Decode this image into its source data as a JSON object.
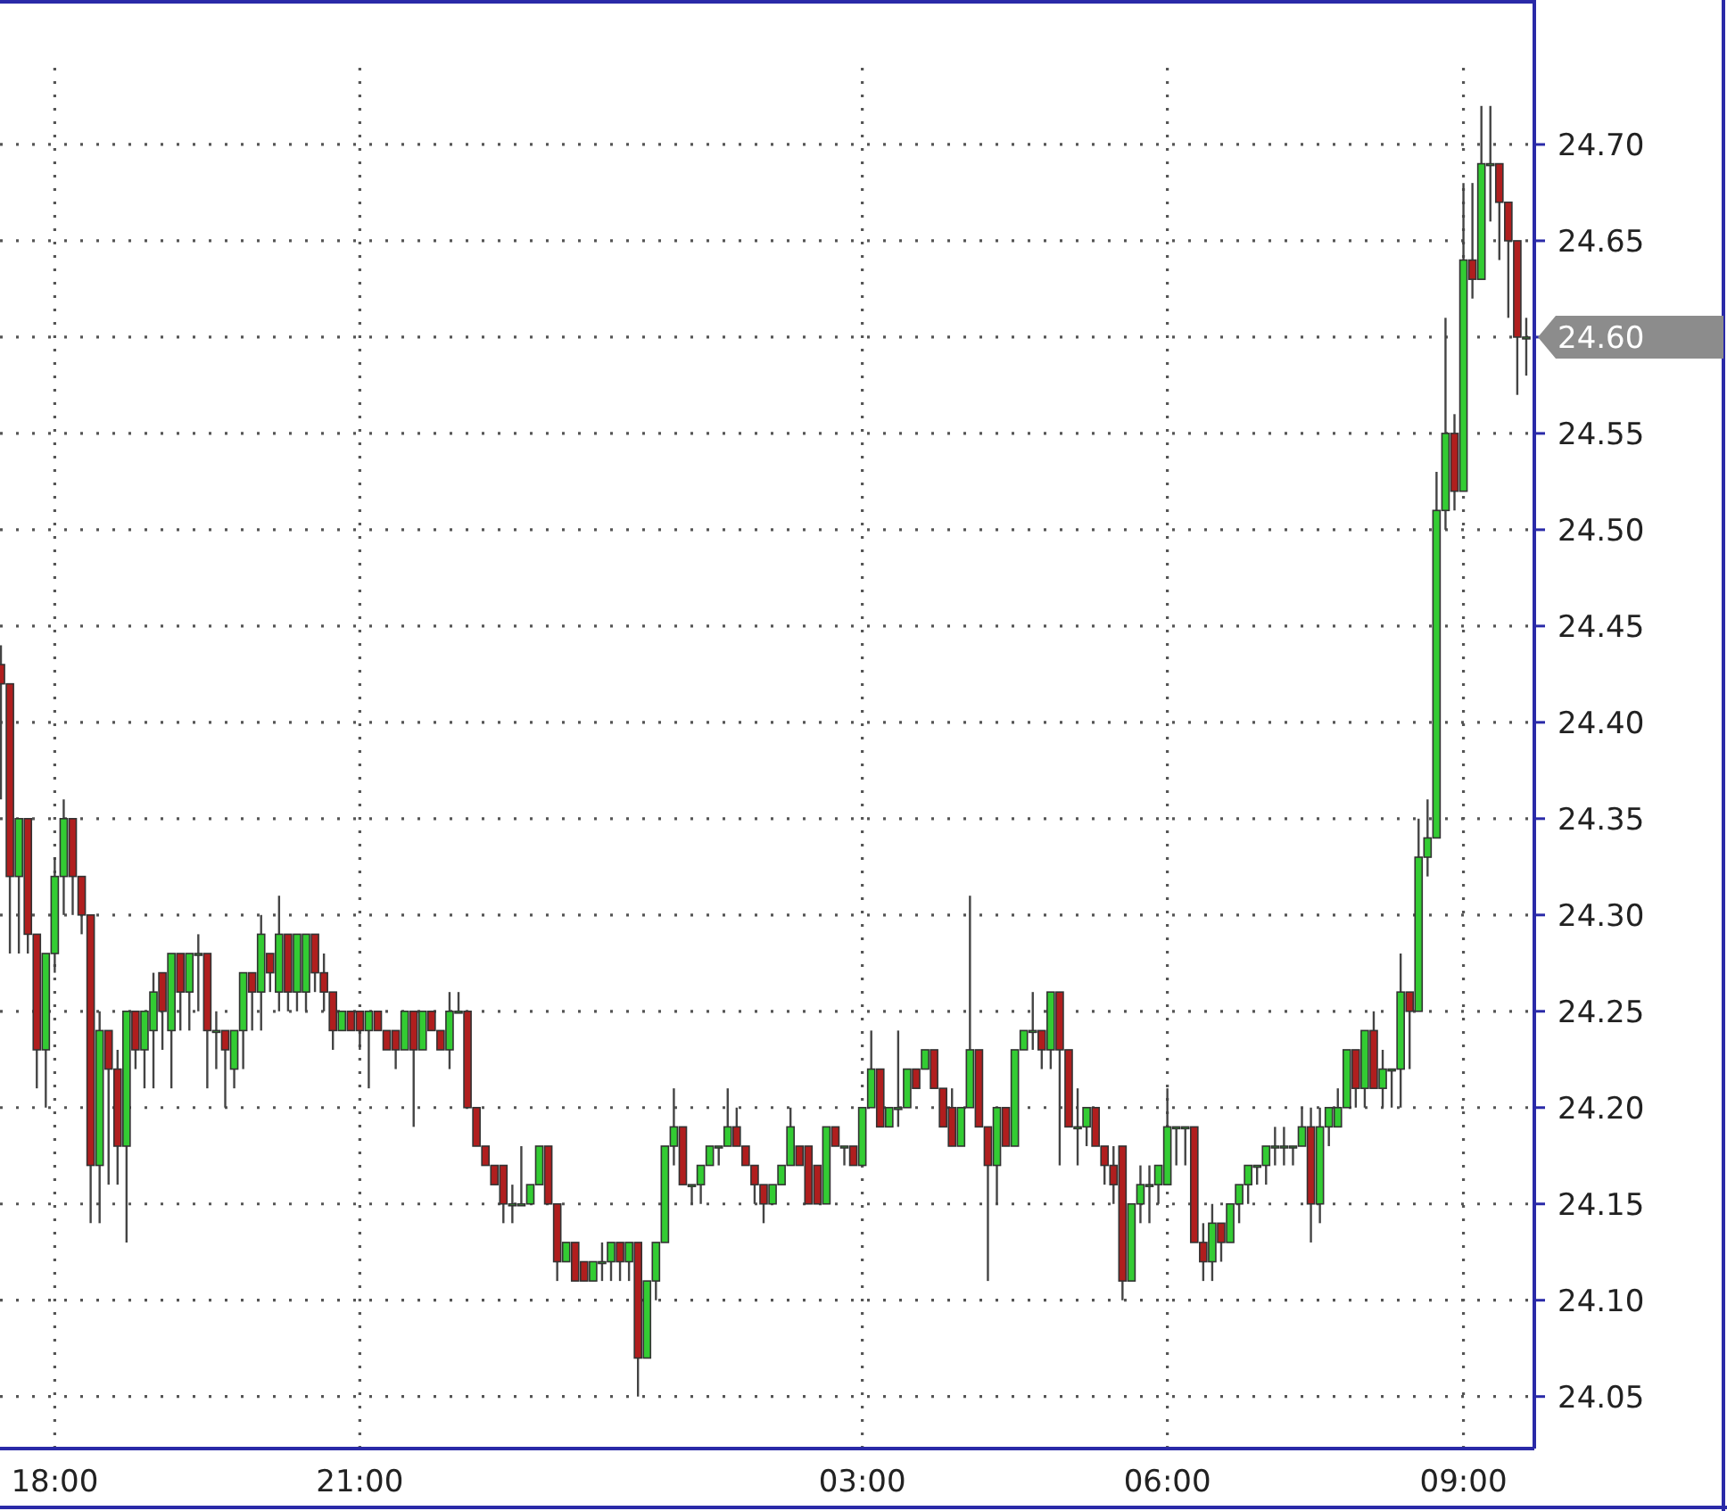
{
  "chart_data": {
    "type": "candlestick",
    "categories": [
      null,
      null,
      null,
      null,
      null,
      null,
      "18:00",
      null,
      null,
      null,
      null,
      null,
      null,
      null,
      null,
      null,
      null,
      null,
      null,
      null,
      null,
      null,
      null,
      null,
      null,
      null,
      null,
      null,
      null,
      null,
      null,
      null,
      null,
      null,
      null,
      null,
      null,
      null,
      null,
      null,
      "21:00",
      null,
      null,
      null,
      null,
      null,
      null,
      null,
      null,
      null,
      null,
      null,
      null,
      null,
      null,
      null,
      null,
      null,
      null,
      null,
      null,
      null,
      null,
      null,
      null,
      null,
      null,
      null,
      null,
      null,
      null,
      null,
      null,
      null,
      null,
      null,
      null,
      null,
      null,
      null,
      null,
      null,
      null,
      null,
      null,
      null,
      null,
      null,
      null,
      null,
      null,
      null,
      null,
      null,
      null,
      null,
      "03:00",
      null,
      null,
      null,
      null,
      null,
      null,
      null,
      null,
      null,
      null,
      null,
      null,
      null,
      null,
      null,
      null,
      null,
      null,
      null,
      null,
      null,
      null,
      null,
      null,
      null,
      null,
      null,
      null,
      null,
      null,
      null,
      null,
      null,
      "06:00",
      null,
      null,
      null,
      null,
      null,
      null,
      null,
      null,
      null,
      null,
      null,
      null,
      null,
      null,
      null,
      null,
      null,
      null,
      null,
      null,
      null,
      null,
      null,
      null,
      null,
      null,
      null,
      null,
      null,
      null,
      null,
      null,
      "09:00",
      null,
      null,
      null,
      null,
      null,
      null,
      null
    ],
    "ohlc": [
      [
        24.43,
        24.44,
        24.36,
        24.42
      ],
      [
        24.42,
        24.42,
        24.28,
        24.32
      ],
      [
        24.32,
        24.35,
        24.28,
        24.35
      ],
      [
        24.35,
        24.35,
        24.28,
        24.29
      ],
      [
        24.29,
        24.29,
        24.21,
        24.23
      ],
      [
        24.23,
        24.28,
        24.2,
        24.28
      ],
      [
        24.28,
        24.33,
        24.27,
        24.32
      ],
      [
        24.32,
        24.36,
        24.3,
        24.35
      ],
      [
        24.35,
        24.35,
        24.3,
        24.32
      ],
      [
        24.32,
        24.32,
        24.29,
        24.3
      ],
      [
        24.3,
        24.3,
        24.14,
        24.17
      ],
      [
        24.17,
        24.25,
        24.14,
        24.24
      ],
      [
        24.24,
        24.24,
        24.16,
        24.22
      ],
      [
        24.22,
        24.23,
        24.16,
        24.18
      ],
      [
        24.18,
        24.25,
        24.13,
        24.25
      ],
      [
        24.25,
        24.25,
        24.22,
        24.23
      ],
      [
        24.23,
        24.25,
        24.21,
        24.25
      ],
      [
        24.24,
        24.27,
        24.21,
        24.26
      ],
      [
        24.27,
        24.27,
        24.23,
        24.25
      ],
      [
        24.24,
        24.28,
        24.21,
        24.28
      ],
      [
        24.28,
        24.28,
        24.24,
        24.26
      ],
      [
        24.26,
        24.28,
        24.24,
        24.28
      ],
      [
        24.28,
        24.29,
        24.25,
        24.28
      ],
      [
        24.28,
        24.28,
        24.21,
        24.24
      ],
      [
        24.24,
        24.25,
        24.22,
        24.24
      ],
      [
        24.24,
        24.24,
        24.2,
        24.23
      ],
      [
        24.22,
        24.24,
        24.21,
        24.24
      ],
      [
        24.24,
        24.27,
        24.22,
        24.27
      ],
      [
        24.27,
        24.27,
        24.24,
        24.26
      ],
      [
        24.26,
        24.3,
        24.24,
        24.29
      ],
      [
        24.28,
        24.28,
        24.26,
        24.27
      ],
      [
        24.26,
        24.31,
        24.25,
        24.29
      ],
      [
        24.29,
        24.29,
        24.25,
        24.26
      ],
      [
        24.26,
        24.29,
        24.25,
        24.29
      ],
      [
        24.26,
        24.29,
        24.25,
        24.29
      ],
      [
        24.29,
        24.29,
        24.26,
        24.27
      ],
      [
        24.27,
        24.28,
        24.25,
        24.26
      ],
      [
        24.26,
        24.26,
        24.23,
        24.24
      ],
      [
        24.24,
        24.25,
        24.24,
        24.25
      ],
      [
        24.25,
        24.25,
        24.24,
        24.24
      ],
      [
        24.25,
        24.25,
        24.23,
        24.24
      ],
      [
        24.24,
        24.25,
        24.21,
        24.25
      ],
      [
        24.25,
        24.25,
        24.24,
        24.24
      ],
      [
        24.24,
        24.24,
        24.23,
        24.23
      ],
      [
        24.24,
        24.24,
        24.22,
        24.23
      ],
      [
        24.23,
        24.25,
        24.23,
        24.25
      ],
      [
        24.25,
        24.25,
        24.19,
        24.23
      ],
      [
        24.23,
        24.25,
        24.23,
        24.25
      ],
      [
        24.25,
        24.25,
        24.24,
        24.24
      ],
      [
        24.24,
        24.24,
        24.23,
        24.23
      ],
      [
        24.23,
        24.26,
        24.22,
        24.25
      ],
      [
        24.25,
        24.26,
        24.25,
        24.25
      ],
      [
        24.25,
        24.25,
        24.2,
        24.2
      ],
      [
        24.2,
        24.2,
        24.18,
        24.18
      ],
      [
        24.18,
        24.18,
        24.17,
        24.17
      ],
      [
        24.17,
        24.17,
        24.16,
        24.16
      ],
      [
        24.17,
        24.17,
        24.14,
        24.15
      ],
      [
        24.15,
        24.16,
        24.14,
        24.15
      ],
      [
        24.15,
        24.18,
        24.15,
        24.15
      ],
      [
        24.15,
        24.16,
        24.15,
        24.16
      ],
      [
        24.16,
        24.18,
        24.16,
        24.18
      ],
      [
        24.18,
        24.18,
        24.15,
        24.15
      ],
      [
        24.15,
        24.15,
        24.11,
        24.12
      ],
      [
        24.12,
        24.13,
        24.12,
        24.13
      ],
      [
        24.13,
        24.13,
        24.11,
        24.11
      ],
      [
        24.12,
        24.12,
        24.11,
        24.11
      ],
      [
        24.11,
        24.12,
        24.11,
        24.12
      ],
      [
        24.12,
        24.13,
        24.11,
        24.12
      ],
      [
        24.12,
        24.13,
        24.11,
        24.13
      ],
      [
        24.13,
        24.13,
        24.11,
        24.12
      ],
      [
        24.12,
        24.13,
        24.11,
        24.13
      ],
      [
        24.13,
        24.13,
        24.05,
        24.07
      ],
      [
        24.07,
        24.11,
        24.07,
        24.11
      ],
      [
        24.11,
        24.13,
        24.1,
        24.13
      ],
      [
        24.13,
        24.18,
        24.13,
        24.18
      ],
      [
        24.18,
        24.21,
        24.17,
        24.19
      ],
      [
        24.19,
        24.19,
        24.16,
        24.16
      ],
      [
        24.16,
        24.16,
        24.15,
        24.16
      ],
      [
        24.16,
        24.17,
        24.15,
        24.17
      ],
      [
        24.17,
        24.18,
        24.17,
        24.18
      ],
      [
        24.18,
        24.18,
        24.17,
        24.18
      ],
      [
        24.18,
        24.21,
        24.18,
        24.19
      ],
      [
        24.19,
        24.2,
        24.18,
        24.18
      ],
      [
        24.18,
        24.18,
        24.17,
        24.17
      ],
      [
        24.17,
        24.17,
        24.15,
        24.16
      ],
      [
        24.16,
        24.16,
        24.14,
        24.15
      ],
      [
        24.15,
        24.16,
        24.15,
        24.16
      ],
      [
        24.16,
        24.17,
        24.16,
        24.17
      ],
      [
        24.17,
        24.2,
        24.17,
        24.19
      ],
      [
        24.18,
        24.18,
        24.17,
        24.17
      ],
      [
        24.18,
        24.18,
        24.15,
        24.15
      ],
      [
        24.17,
        24.17,
        24.15,
        24.15
      ],
      [
        24.15,
        24.19,
        24.15,
        24.19
      ],
      [
        24.19,
        24.19,
        24.18,
        24.18
      ],
      [
        24.18,
        24.18,
        24.17,
        24.18
      ],
      [
        24.18,
        24.18,
        24.17,
        24.17
      ],
      [
        24.17,
        24.2,
        24.17,
        24.2
      ],
      [
        24.2,
        24.24,
        24.2,
        24.22
      ],
      [
        24.22,
        24.22,
        24.19,
        24.19
      ],
      [
        24.19,
        24.2,
        24.19,
        24.2
      ],
      [
        24.2,
        24.24,
        24.19,
        24.2
      ],
      [
        24.2,
        24.22,
        24.2,
        24.22
      ],
      [
        24.22,
        24.22,
        24.21,
        24.21
      ],
      [
        24.22,
        24.23,
        24.22,
        24.23
      ],
      [
        24.23,
        24.23,
        24.21,
        24.21
      ],
      [
        24.21,
        24.21,
        24.19,
        24.19
      ],
      [
        24.2,
        24.21,
        24.18,
        24.18
      ],
      [
        24.18,
        24.2,
        24.18,
        24.2
      ],
      [
        24.2,
        24.31,
        24.2,
        24.23
      ],
      [
        24.23,
        24.23,
        24.19,
        24.19
      ],
      [
        24.19,
        24.19,
        24.11,
        24.17
      ],
      [
        24.17,
        24.2,
        24.15,
        24.2
      ],
      [
        24.2,
        24.2,
        24.18,
        24.18
      ],
      [
        24.18,
        24.23,
        24.18,
        24.23
      ],
      [
        24.23,
        24.24,
        24.23,
        24.24
      ],
      [
        24.24,
        24.26,
        24.23,
        24.24
      ],
      [
        24.24,
        24.24,
        24.22,
        24.23
      ],
      [
        24.23,
        24.26,
        24.22,
        24.26
      ],
      [
        24.26,
        24.26,
        24.17,
        24.23
      ],
      [
        24.23,
        24.23,
        24.19,
        24.19
      ],
      [
        24.19,
        24.21,
        24.17,
        24.19
      ],
      [
        24.19,
        24.2,
        24.18,
        24.2
      ],
      [
        24.2,
        24.2,
        24.18,
        24.18
      ],
      [
        24.18,
        24.18,
        24.16,
        24.17
      ],
      [
        24.17,
        24.18,
        24.15,
        24.16
      ],
      [
        24.18,
        24.18,
        24.1,
        24.11
      ],
      [
        24.11,
        24.15,
        24.11,
        24.15
      ],
      [
        24.15,
        24.17,
        24.14,
        24.16
      ],
      [
        24.16,
        24.17,
        24.14,
        24.16
      ],
      [
        24.16,
        24.17,
        24.15,
        24.17
      ],
      [
        24.16,
        24.21,
        24.16,
        24.19
      ],
      [
        24.19,
        24.19,
        24.17,
        24.19
      ],
      [
        24.19,
        24.19,
        24.17,
        24.19
      ],
      [
        24.19,
        24.19,
        24.13,
        24.13
      ],
      [
        24.13,
        24.14,
        24.11,
        24.12
      ],
      [
        24.12,
        24.15,
        24.11,
        24.14
      ],
      [
        24.14,
        24.14,
        24.12,
        24.13
      ],
      [
        24.13,
        24.15,
        24.13,
        24.15
      ],
      [
        24.15,
        24.16,
        24.14,
        24.16
      ],
      [
        24.16,
        24.17,
        24.15,
        24.17
      ],
      [
        24.17,
        24.17,
        24.16,
        24.17
      ],
      [
        24.17,
        24.18,
        24.16,
        24.18
      ],
      [
        24.18,
        24.19,
        24.17,
        24.18
      ],
      [
        24.18,
        24.19,
        24.17,
        24.18
      ],
      [
        24.18,
        24.18,
        24.17,
        24.18
      ],
      [
        24.18,
        24.2,
        24.18,
        24.19
      ],
      [
        24.19,
        24.2,
        24.13,
        24.15
      ],
      [
        24.15,
        24.2,
        24.14,
        24.19
      ],
      [
        24.19,
        24.2,
        24.18,
        24.2
      ],
      [
        24.19,
        24.21,
        24.19,
        24.2
      ],
      [
        24.2,
        24.23,
        24.2,
        24.23
      ],
      [
        24.23,
        24.23,
        24.2,
        24.21
      ],
      [
        24.21,
        24.24,
        24.2,
        24.24
      ],
      [
        24.24,
        24.25,
        24.21,
        24.21
      ],
      [
        24.21,
        24.23,
        24.2,
        24.22
      ],
      [
        24.22,
        24.22,
        24.2,
        24.22
      ],
      [
        24.22,
        24.28,
        24.2,
        24.26
      ],
      [
        24.26,
        24.26,
        24.22,
        24.25
      ],
      [
        24.25,
        24.35,
        24.25,
        24.33
      ],
      [
        24.33,
        24.36,
        24.32,
        24.34
      ],
      [
        24.34,
        24.53,
        24.34,
        24.51
      ],
      [
        24.51,
        24.61,
        24.5,
        24.55
      ],
      [
        24.55,
        24.56,
        24.51,
        24.52
      ],
      [
        24.52,
        24.68,
        24.52,
        24.64
      ],
      [
        24.64,
        24.68,
        24.62,
        24.63
      ],
      [
        24.63,
        24.72,
        24.63,
        24.69
      ],
      [
        24.69,
        24.72,
        24.66,
        24.69
      ],
      [
        24.69,
        24.69,
        24.64,
        24.67
      ],
      [
        24.67,
        24.67,
        24.61,
        24.65
      ],
      [
        24.65,
        24.65,
        24.57,
        24.6
      ],
      [
        24.6,
        24.61,
        24.58,
        24.6
      ]
    ],
    "ylim": [
      24.023,
      24.775
    ],
    "yticks": [
      {
        "value": 24.05,
        "label": "24.05"
      },
      {
        "value": 24.1,
        "label": "24.10"
      },
      {
        "value": 24.15,
        "label": "24.15"
      },
      {
        "value": 24.2,
        "label": "24.20"
      },
      {
        "value": 24.25,
        "label": "24.25"
      },
      {
        "value": 24.3,
        "label": "24.30"
      },
      {
        "value": 24.35,
        "label": "24.35"
      },
      {
        "value": 24.4,
        "label": "24.40"
      },
      {
        "value": 24.45,
        "label": "24.45"
      },
      {
        "value": 24.5,
        "label": "24.50"
      },
      {
        "value": 24.55,
        "label": "24.55"
      },
      {
        "value": 24.6,
        "label": null
      },
      {
        "value": 24.65,
        "label": "24.65"
      },
      {
        "value": 24.7,
        "label": "24.70"
      }
    ],
    "grid": true,
    "annotations": [
      "24.60"
    ]
  }
}
